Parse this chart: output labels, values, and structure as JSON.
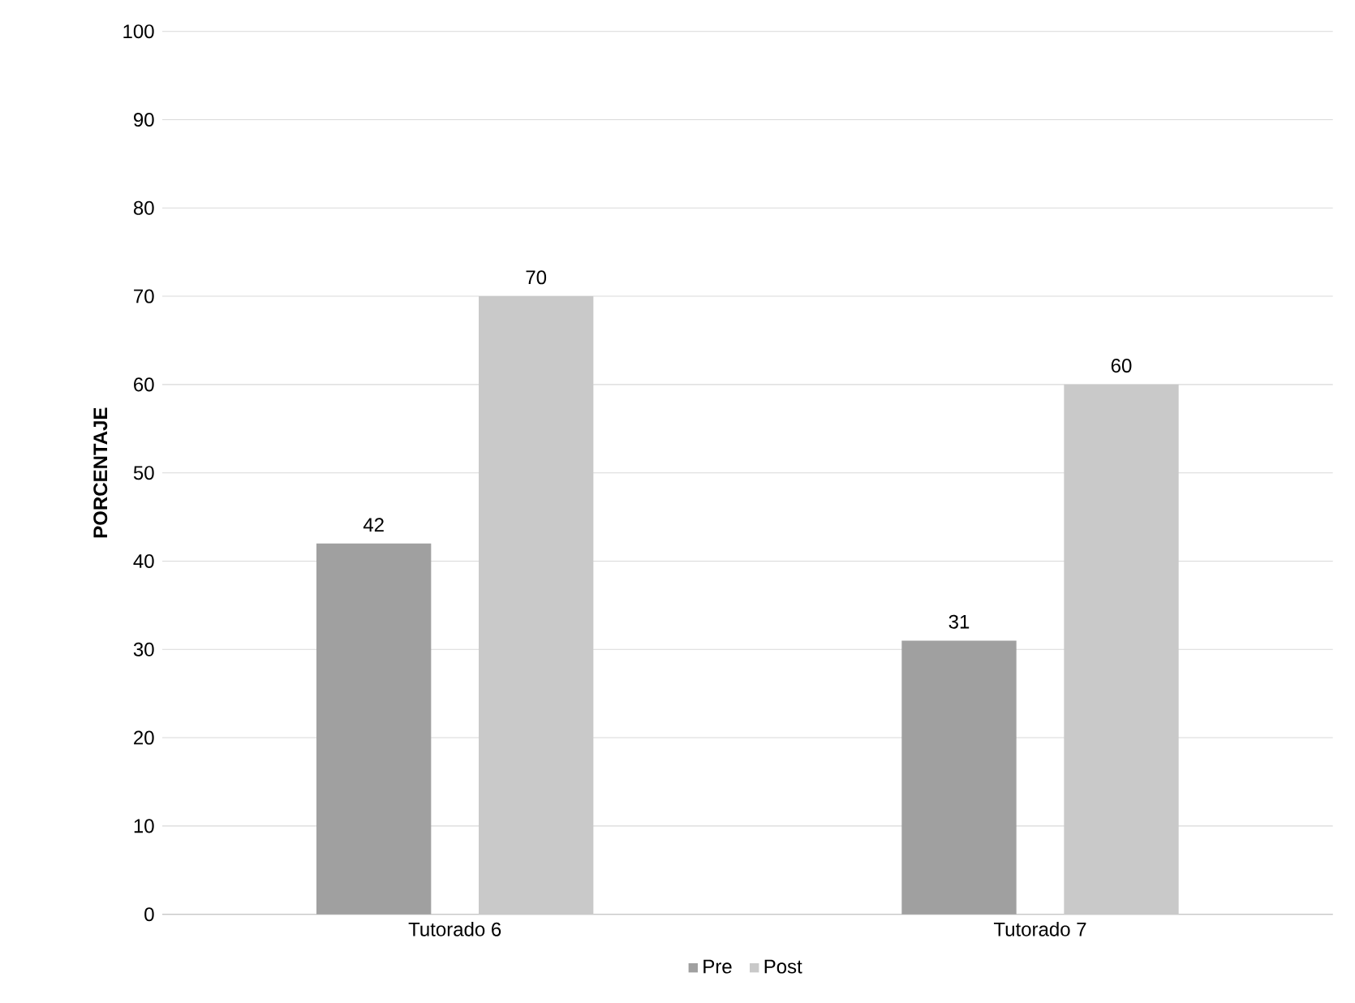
{
  "chart_data": {
    "type": "bar",
    "ylabel": "PORCENTAJE",
    "categories": [
      "Tutorado 6",
      "Tutorado 7"
    ],
    "series": [
      {
        "name": "Pre",
        "color": "#a0a0a0",
        "values": [
          42,
          31
        ]
      },
      {
        "name": "Post",
        "color": "#c9c9c9",
        "values": [
          70,
          60
        ]
      }
    ],
    "ylim": [
      0,
      100
    ],
    "yticks": [
      0,
      10,
      20,
      30,
      40,
      50,
      60,
      70,
      80,
      90,
      100
    ],
    "grid": "y",
    "legend": "bottom",
    "data_labels": true
  }
}
